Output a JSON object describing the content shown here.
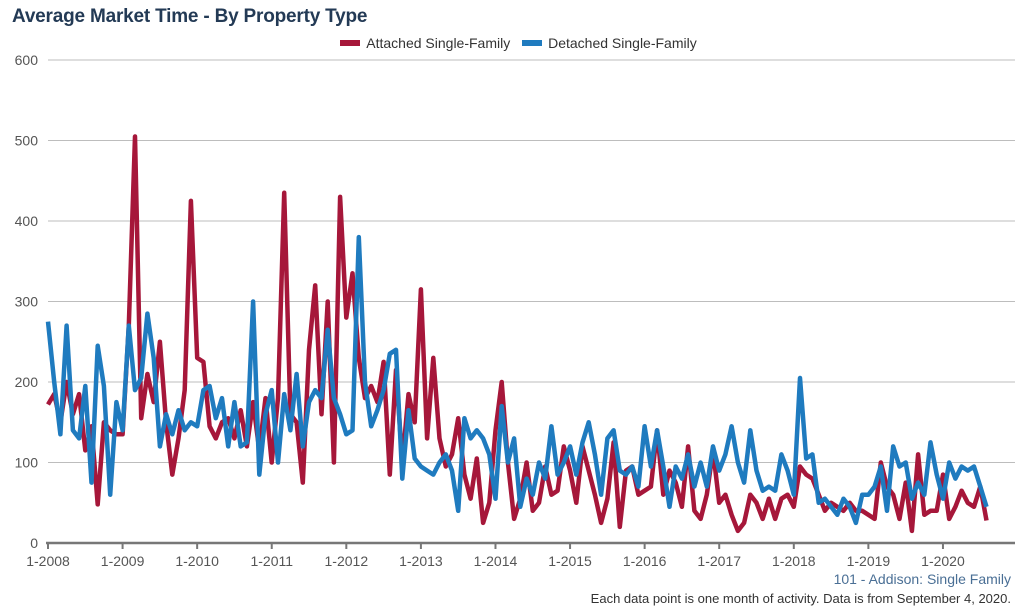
{
  "chart_data": {
    "type": "line",
    "title": "Average Market Time - By Property Type",
    "xlabel": "",
    "ylabel": "",
    "ylim": [
      0,
      600
    ],
    "yticks": [
      "0",
      "100",
      "200",
      "300",
      "400",
      "500",
      "600"
    ],
    "xticks": [
      "1-2008",
      "1-2009",
      "1-2010",
      "1-2011",
      "1-2012",
      "1-2013",
      "1-2014",
      "1-2015",
      "1-2016",
      "1-2017",
      "1-2018",
      "1-2019",
      "1-2020"
    ],
    "x_start": "1-2008",
    "x_end": "8-2020",
    "frequency": "monthly",
    "grid": true,
    "legend_position": "top-center",
    "series": [
      {
        "name": "Attached Single-Family",
        "color": "#a6173a",
        "values": [
          172,
          185,
          150,
          200,
          160,
          185,
          115,
          145,
          48,
          150,
          140,
          135,
          135,
          270,
          505,
          155,
          210,
          175,
          250,
          150,
          85,
          130,
          190,
          425,
          230,
          225,
          145,
          130,
          150,
          155,
          130,
          165,
          120,
          175,
          115,
          180,
          100,
          180,
          435,
          160,
          150,
          75,
          240,
          320,
          160,
          300,
          100,
          430,
          280,
          335,
          230,
          180,
          195,
          175,
          225,
          85,
          215,
          100,
          185,
          150,
          315,
          130,
          230,
          130,
          95,
          110,
          155,
          85,
          55,
          105,
          25,
          50,
          140,
          200,
          100,
          30,
          55,
          100,
          40,
          50,
          95,
          60,
          65,
          120,
          90,
          50,
          120,
          90,
          60,
          25,
          55,
          125,
          20,
          90,
          95,
          60,
          65,
          70,
          140,
          60,
          90,
          75,
          45,
          120,
          40,
          30,
          60,
          115,
          50,
          60,
          35,
          15,
          25,
          60,
          50,
          30,
          55,
          30,
          55,
          60,
          45,
          95,
          85,
          80,
          60,
          40,
          50,
          45,
          40,
          50,
          40,
          40,
          35,
          30,
          100,
          70,
          60,
          30,
          75,
          15,
          110,
          35,
          40,
          40,
          85,
          30,
          45,
          65,
          50,
          45,
          70,
          28
        ]
      },
      {
        "name": "Detached Single-Family",
        "color": "#1f7bbf",
        "values": [
          275,
          200,
          135,
          270,
          140,
          130,
          195,
          75,
          245,
          195,
          60,
          175,
          140,
          270,
          190,
          205,
          285,
          230,
          120,
          160,
          135,
          165,
          140,
          150,
          145,
          190,
          195,
          155,
          180,
          120,
          175,
          120,
          125,
          300,
          85,
          160,
          190,
          100,
          185,
          140,
          210,
          120,
          175,
          190,
          180,
          265,
          180,
          160,
          135,
          140,
          380,
          200,
          145,
          165,
          190,
          235,
          240,
          80,
          165,
          105,
          95,
          90,
          85,
          100,
          110,
          90,
          40,
          155,
          130,
          140,
          130,
          110,
          55,
          170,
          100,
          130,
          45,
          80,
          60,
          100,
          80,
          145,
          85,
          100,
          120,
          85,
          125,
          150,
          110,
          60,
          130,
          140,
          90,
          85,
          95,
          70,
          145,
          95,
          140,
          95,
          45,
          95,
          80,
          110,
          70,
          100,
          70,
          120,
          90,
          110,
          145,
          100,
          75,
          140,
          90,
          65,
          70,
          65,
          110,
          90,
          60,
          205,
          105,
          110,
          50,
          55,
          45,
          35,
          55,
          45,
          25,
          60,
          60,
          70,
          95,
          40,
          120,
          95,
          100,
          55,
          75,
          60,
          125,
          85,
          55,
          100,
          80,
          95,
          90,
          95,
          70,
          45
        ]
      }
    ]
  },
  "footer": {
    "subtitle": "101 - Addison: Single Family",
    "note": "Each data point is one month of activity. Data is from September 4, 2020."
  }
}
